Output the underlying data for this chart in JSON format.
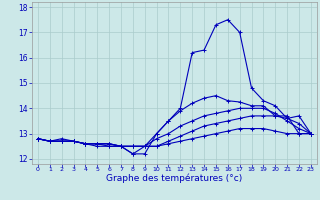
{
  "xlabel": "Graphe des températures (°c)",
  "background_color": "#cce8e8",
  "grid_color": "#aacccc",
  "line_color": "#0000bb",
  "x": [
    0,
    1,
    2,
    3,
    4,
    5,
    6,
    7,
    8,
    9,
    10,
    11,
    12,
    13,
    14,
    15,
    16,
    17,
    18,
    19,
    20,
    21,
    22,
    23
  ],
  "series": [
    [
      12.8,
      12.7,
      12.8,
      12.7,
      12.6,
      12.6,
      12.6,
      12.5,
      12.2,
      12.5,
      13.0,
      13.5,
      13.9,
      14.2,
      14.4,
      14.5,
      14.3,
      14.25,
      14.1,
      14.1,
      13.7,
      13.7,
      13.0,
      13.0
    ],
    [
      12.8,
      12.7,
      12.7,
      12.7,
      12.6,
      12.6,
      12.5,
      12.5,
      12.5,
      12.5,
      12.8,
      13.0,
      13.3,
      13.5,
      13.7,
      13.8,
      13.9,
      14.0,
      14.0,
      14.0,
      13.8,
      13.5,
      13.2,
      13.0
    ],
    [
      12.8,
      12.7,
      12.7,
      12.7,
      12.6,
      12.6,
      12.6,
      12.5,
      12.5,
      12.5,
      12.5,
      12.7,
      12.9,
      13.1,
      13.3,
      13.4,
      13.5,
      13.6,
      13.7,
      13.7,
      13.7,
      13.6,
      13.4,
      13.0
    ],
    [
      12.8,
      12.7,
      12.7,
      12.7,
      12.6,
      12.6,
      12.6,
      12.5,
      12.5,
      12.5,
      12.5,
      12.6,
      12.7,
      12.8,
      12.9,
      13.0,
      13.1,
      13.2,
      13.2,
      13.2,
      13.1,
      13.0,
      13.0,
      13.0
    ],
    [
      12.8,
      12.7,
      12.7,
      12.7,
      12.6,
      12.5,
      12.5,
      12.5,
      12.2,
      12.2,
      13.0,
      13.5,
      14.0,
      16.2,
      16.3,
      17.3,
      17.5,
      17.0,
      14.8,
      14.3,
      14.1,
      13.6,
      13.7,
      13.0
    ]
  ],
  "ylim": [
    11.8,
    18.2
  ],
  "yticks": [
    12,
    13,
    14,
    15,
    16,
    17,
    18
  ],
  "xticks": [
    0,
    1,
    2,
    3,
    4,
    5,
    6,
    7,
    8,
    9,
    10,
    11,
    12,
    13,
    14,
    15,
    16,
    17,
    18,
    19,
    20,
    21,
    22,
    23
  ],
  "marker": "+",
  "markersize": 3,
  "linewidth": 0.8,
  "xlabel_fontsize": 6.5,
  "xtick_fontsize": 4.5,
  "ytick_fontsize": 5.5
}
